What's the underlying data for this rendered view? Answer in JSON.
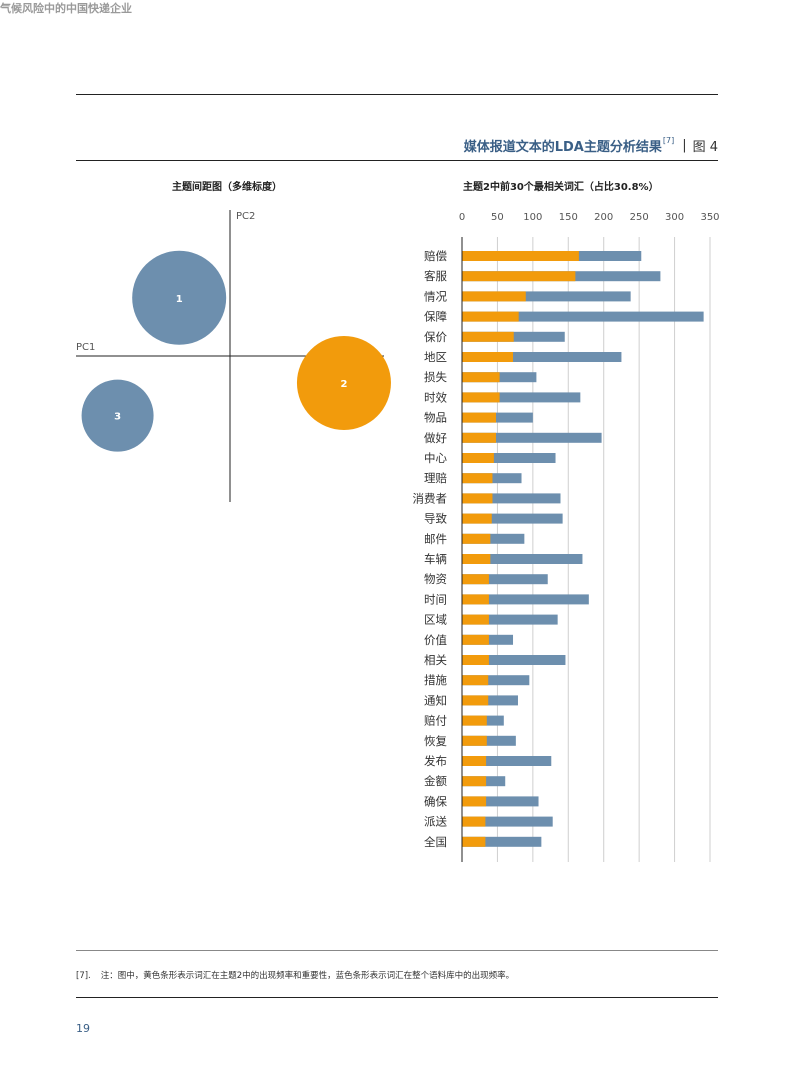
{
  "header": {
    "running_title": "气候风险中的中国快递企业"
  },
  "figure": {
    "title": "媒体报道文本的LDA主题分析结果",
    "ref": "[7]",
    "separator": "|",
    "number": "图 4"
  },
  "left_chart_title": "主题间距图（多维标度）",
  "right_chart_title": "主题2中前30个最相关词汇（占比30.8%）",
  "colors": {
    "blue": "#6d8fae",
    "orange": "#f29b0c",
    "accent": "#3a5f86"
  },
  "chart_data": [
    {
      "type": "scatter",
      "title": "主题间距图（多维标度）",
      "xlabel": "PC1",
      "ylabel": "PC2",
      "points": [
        {
          "label": "1",
          "x": -0.33,
          "y": 0.41,
          "size": "large",
          "color": "#6d8fae"
        },
        {
          "label": "2",
          "x": 0.74,
          "y": -0.19,
          "size": "large",
          "color": "#f29b0c",
          "highlighted": true
        },
        {
          "label": "3",
          "x": -0.73,
          "y": -0.42,
          "size": "medium",
          "color": "#6d8fae"
        }
      ]
    },
    {
      "type": "bar",
      "orientation": "horizontal",
      "stacked_overlay": true,
      "title": "主题2中前30个最相关词汇（占比30.8%）",
      "xlim": [
        0,
        350
      ],
      "xticks": [
        0,
        50,
        100,
        150,
        200,
        250,
        300,
        350
      ],
      "grid": true,
      "categories": [
        "赔偿",
        "客服",
        "情况",
        "保障",
        "保价",
        "地区",
        "损失",
        "时效",
        "物品",
        "做好",
        "中心",
        "理赔",
        "消费者",
        "导致",
        "邮件",
        "车辆",
        "物资",
        "时间",
        "区域",
        "价值",
        "相关",
        "措施",
        "通知",
        "赔付",
        "恢复",
        "发布",
        "金额",
        "确保",
        "派送",
        "全国"
      ],
      "series": [
        {
          "color": "#f29b0c",
          "values": [
            165,
            160,
            90,
            80,
            73,
            72,
            53,
            53,
            48,
            48,
            45,
            43,
            43,
            42,
            40,
            40,
            38,
            38,
            38,
            38,
            38,
            37,
            37,
            35,
            35,
            34,
            34,
            34,
            33,
            33
          ]
        },
        {
          "color": "#6d8fae",
          "values": [
            253,
            280,
            238,
            341,
            145,
            225,
            105,
            167,
            100,
            197,
            132,
            84,
            139,
            142,
            88,
            170,
            121,
            179,
            135,
            72,
            146,
            95,
            79,
            59,
            76,
            126,
            61,
            108,
            128,
            112
          ]
        }
      ]
    }
  ],
  "footnote": {
    "mark": "[7].",
    "text": "注：图中，黄色条形表示词汇在主题2中的出现频率和重要性，蓝色条形表示词汇在整个语料库中的出现频率。"
  },
  "page_number": "19"
}
